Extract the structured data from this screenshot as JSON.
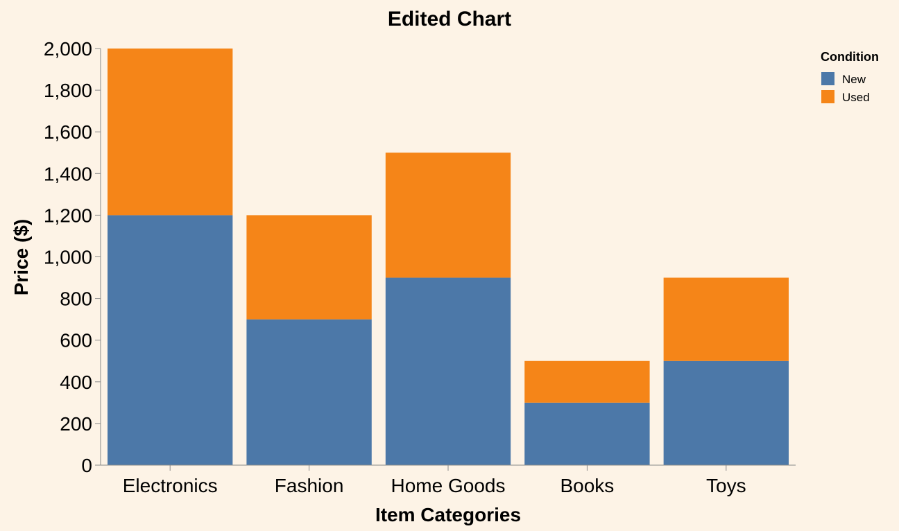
{
  "chart_data": {
    "type": "bar",
    "stacked": true,
    "title": "Edited Chart",
    "xlabel": "Item Categories",
    "ylabel": "Price ($)",
    "categories": [
      "Electronics",
      "Fashion",
      "Home Goods",
      "Books",
      "Toys"
    ],
    "series": [
      {
        "name": "New",
        "values": [
          1200,
          700,
          900,
          300,
          500
        ],
        "color": "#4c78a8"
      },
      {
        "name": "Used",
        "values": [
          800,
          500,
          600,
          200,
          400
        ],
        "color": "#f58518"
      }
    ],
    "ylim": [
      0,
      2000
    ],
    "yticks": [
      0,
      200,
      400,
      600,
      800,
      1000,
      1200,
      1400,
      1600,
      1800,
      2000
    ],
    "ytick_labels": [
      "0",
      "200",
      "400",
      "600",
      "800",
      "1,000",
      "1,200",
      "1,400",
      "1,600",
      "1,800",
      "2,000"
    ],
    "grid": false,
    "legend": {
      "title": "Condition",
      "placement": "top-right"
    },
    "background": "#fdf3e6"
  }
}
